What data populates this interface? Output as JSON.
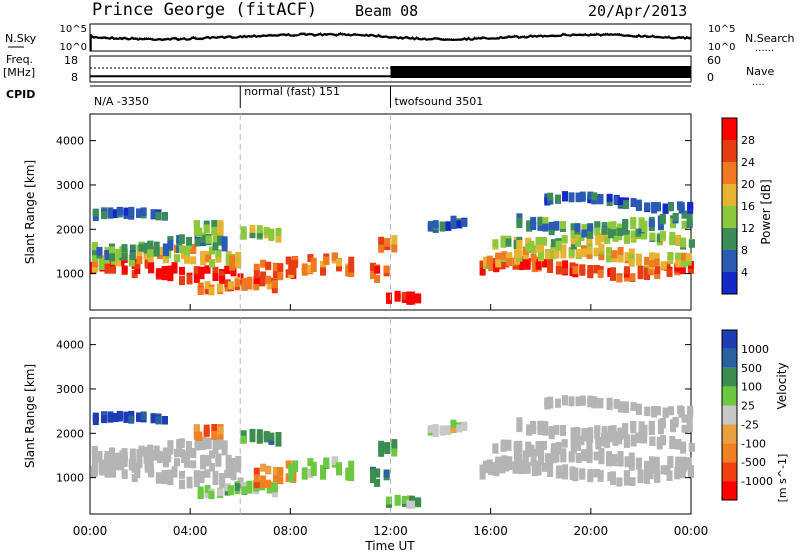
{
  "header": {
    "station": "Prince George (fitACF)",
    "beam": "Beam 08",
    "date": "20/Apr/2013"
  },
  "colors": {
    "power_scale": [
      "#1428c8",
      "#2a5ab4",
      "#3c8c5a",
      "#8cc83c",
      "#e6b432",
      "#f07820",
      "#e63c14",
      "#ff0000"
    ],
    "velocity_scale": [
      "#1e3cb4",
      "#2860a0",
      "#3c8c50",
      "#6cc840",
      "#c8c8c8",
      "#e8a040",
      "#f08020",
      "#f04010",
      "#ff0000"
    ],
    "ground_scatter": "#b4b4b4"
  },
  "chart_data": [
    {
      "type": "line",
      "name": "noise",
      "left_label": "N.Sky",
      "right_label": "N.Search",
      "left_ticks": [
        "10^5",
        "10^0"
      ],
      "right_ticks": [
        "10^5",
        "10^0"
      ],
      "right_legend": "......"
    },
    {
      "type": "line",
      "name": "frequency",
      "left_label": "Freq.",
      "left_unit": "[MHz]",
      "left_ticks": [
        "18",
        "8"
      ],
      "right_label": "Nave",
      "right_ticks": [
        "60",
        "0"
      ],
      "right_legend": "....",
      "frequency_mhz": 10.2
    },
    {
      "type": "table",
      "name": "cpid",
      "label": "CPID",
      "segments": [
        {
          "start": "00:00",
          "end": "06:00",
          "label": "N/A -3350"
        },
        {
          "start": "06:00",
          "end": "12:00",
          "label": "normal (fast) 151"
        },
        {
          "start": "12:00",
          "end": "24:00",
          "label": "twofsound 3501"
        }
      ]
    },
    {
      "type": "heatmap",
      "name": "power",
      "ylabel": "Slant Range [km]",
      "yticks": [
        1000,
        2000,
        3000,
        4000
      ],
      "ylim": [
        180,
        4600
      ],
      "xlim": [
        0,
        24
      ],
      "colorbar": {
        "label": "Power [dB]",
        "ticks": [
          4,
          8,
          12,
          16,
          20,
          24,
          28
        ],
        "range": [
          0,
          32
        ]
      }
    },
    {
      "type": "heatmap",
      "name": "velocity",
      "ylabel": "Slant Range [km]",
      "yticks": [
        1000,
        2000,
        3000,
        4000
      ],
      "ylim": [
        180,
        4600
      ],
      "xlim": [
        0,
        24
      ],
      "xlabel": "Time UT",
      "xticks": [
        "00:00",
        "04:00",
        "08:00",
        "12:00",
        "16:00",
        "20:00",
        "00:00"
      ],
      "colorbar": {
        "label": "Velocity",
        "unit": "[m s^-1]",
        "ticks": [
          1000,
          500,
          100,
          25,
          -25,
          -100,
          -500,
          -1000
        ]
      }
    }
  ]
}
